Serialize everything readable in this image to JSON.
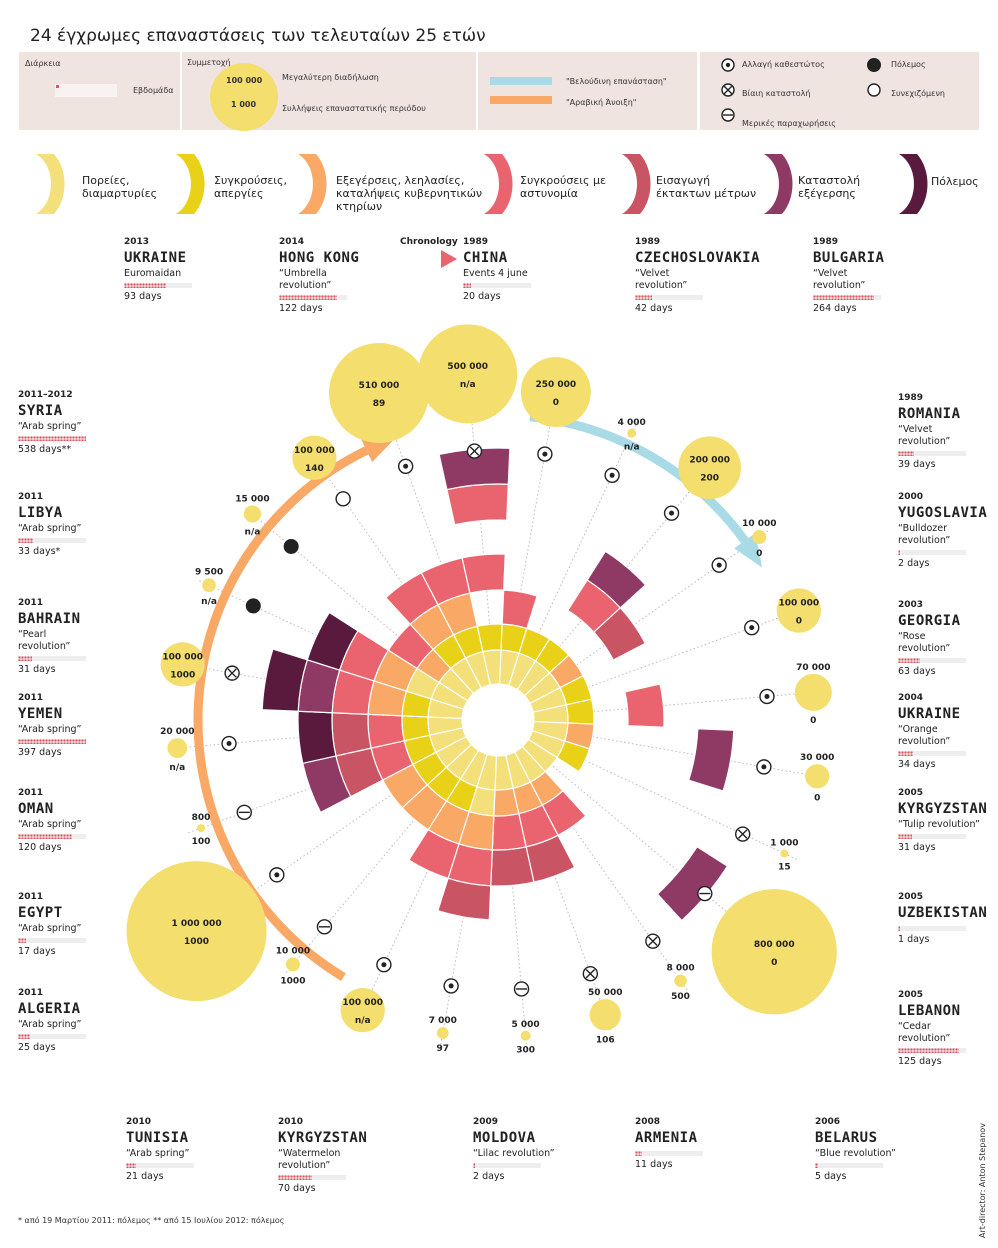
{
  "title": "24 έγχρωμες επαναστάσεις των τελευταίων 25 ετών",
  "legend": {
    "duration_label": "Διάρκεια",
    "week_label": "Εβδομάδα",
    "participation_label": "Συμμετοχή",
    "max_participation": "100 000",
    "arrests": "1 000",
    "max_spread_label": "Μεγαλύτερη διαδήλωση",
    "arrests_label": "Συλλήψεις επαναστατικής περιόδου",
    "velvet_label": "\"Βελούδινη επανάσταση\"",
    "arab_label": "\"Αραβική Άνοιξη\"",
    "velvet_color": "#a8dbe6",
    "arab_color": "#f9a865",
    "regime_change": "Αλλαγή καθεστώτος",
    "violent_suppression": "Βίαιη καταστολή",
    "partial_concessions": "Μερικές παραχωρήσεις",
    "war": "Πόλεμος",
    "ongoing": "Συνεχιζόμενη"
  },
  "categories": [
    {
      "label": "Πορείες, διαμαρτυρίες",
      "color": "#f4e07a",
      "icon": "yellow-wedge-icon"
    },
    {
      "label": "Συγκρούσεις, απεργίες",
      "color": "#e8d117",
      "icon": "gold-wedge-icon"
    },
    {
      "label": "Εξεγέρσεις, λεηλασίες, καταλήψεις κυβερνητικών κτηρίων",
      "color": "#f9a865",
      "icon": "orange-wedge-icon"
    },
    {
      "label": "Συγκρούσεις με αστυνομία",
      "color": "#ea6470",
      "icon": "pink-wedge-icon"
    },
    {
      "label": "Εισαγωγή έκτακτων μέτρων",
      "color": "#c95463",
      "icon": "rose-wedge-icon"
    },
    {
      "label": "Καταστολή εξέγερσης",
      "color": "#8e3a64",
      "icon": "plum-wedge-icon"
    },
    {
      "label": "Πόλεμος",
      "color": "#5a1a3e",
      "icon": "wine-wedge-icon"
    }
  ],
  "chronology_label": "Chronology",
  "revolutions": [
    {
      "year": "1989",
      "country": "CHINA",
      "name": "Events 4 june",
      "days": "20 days",
      "participants": "500 000",
      "arrests": "n/a",
      "outcome": "violent",
      "bar": 0.12
    },
    {
      "year": "1989",
      "country": "CZECHOSLOVAKIA",
      "name": "“Velvet revolution”",
      "days": "42 days",
      "participants": "250 000",
      "arrests": "0",
      "outcome": "regime",
      "bar": 0.25
    },
    {
      "year": "1989",
      "country": "BULGARIA",
      "name": "“Velvet revolution”",
      "days": "264 days",
      "participants": "4 000",
      "arrests": "n/a",
      "outcome": "regime",
      "bar": 0.9
    },
    {
      "year": "1989",
      "country": "ROMANIA",
      "name": "“Velvet revolution”",
      "days": "39 days",
      "participants": "200 000",
      "arrests": "200",
      "outcome": "regime",
      "bar": 0.23
    },
    {
      "year": "2000",
      "country": "YUGOSLAVIA",
      "name": "“Bulldozer revolution”",
      "days": "2 days",
      "participants": "10 000",
      "arrests": "0",
      "outcome": "regime",
      "bar": 0.03
    },
    {
      "year": "2003",
      "country": "GEORGIA",
      "name": "“Rose revolution”",
      "days": "63 days",
      "participants": "100 000",
      "arrests": "0",
      "outcome": "regime",
      "bar": 0.33
    },
    {
      "year": "2004",
      "country": "UKRAINE",
      "name": "“Orange revolution”",
      "days": "34 days",
      "participants": "70 000",
      "arrests": "0",
      "outcome": "regime",
      "bar": 0.22
    },
    {
      "year": "2005",
      "country": "KYRGYZSTAN",
      "name": "“Tulip revolution”",
      "days": "31 days",
      "participants": "30 000",
      "arrests": "0",
      "outcome": "regime",
      "bar": 0.2
    },
    {
      "year": "2005",
      "country": "UZBEKISTAN",
      "name": "",
      "days": "1 days",
      "participants": "1 000",
      "arrests": "15",
      "outcome": "violent",
      "bar": 0.03
    },
    {
      "year": "2005",
      "country": "LEBANON",
      "name": "“Cedar revolution”",
      "days": "125 days",
      "participants": "800 000",
      "arrests": "0",
      "outcome": "partial",
      "bar": 0.9
    },
    {
      "year": "2006",
      "country": "BELARUS",
      "name": "“Blue revolution”",
      "days": "5 days",
      "participants": "8 000",
      "arrests": "500",
      "outcome": "violent",
      "bar": 0.05
    },
    {
      "year": "2008",
      "country": "ARMENIA",
      "name": "",
      "days": "11 days",
      "participants": "50 000",
      "arrests": "106",
      "outcome": "violent",
      "bar": 0.1
    },
    {
      "year": "2009",
      "country": "MOLDOVA",
      "name": "“Lilac revolution”",
      "days": "2 days",
      "participants": "5 000",
      "arrests": "300",
      "outcome": "partial",
      "bar": 0.03
    },
    {
      "year": "2010",
      "country": "KYRGYZSTAN",
      "name": "“Watermelon revolution”",
      "days": "70 days",
      "participants": "7 000",
      "arrests": "97",
      "outcome": "regime",
      "bar": 0.5
    },
    {
      "year": "2010",
      "country": "TUNISIA",
      "name": "“Arab spring”",
      "days": "21 days",
      "participants": "100 000",
      "arrests": "n/a",
      "outcome": "regime",
      "bar": 0.15
    },
    {
      "year": "2011",
      "country": "ALGERIA",
      "name": "“Arab spring”",
      "days": "25 days",
      "participants": "10 000",
      "arrests": "1000",
      "outcome": "partial",
      "bar": 0.18
    },
    {
      "year": "2011",
      "country": "EGYPT",
      "name": "“Arab spring”",
      "days": "17 days",
      "participants": "1 000 000",
      "arrests": "1000",
      "outcome": "regime",
      "bar": 0.12
    },
    {
      "year": "2011",
      "country": "OMAN",
      "name": "“Arab spring”",
      "days": "120 days",
      "participants": "800",
      "arrests": "100",
      "outcome": "partial",
      "bar": 0.8
    },
    {
      "year": "2011",
      "country": "YEMEN",
      "name": "“Arab spring”",
      "days": "397 days",
      "participants": "20 000",
      "arrests": "n/a",
      "outcome": "regime",
      "bar": 1.0
    },
    {
      "year": "2011",
      "country": "BAHRAIN",
      "name": "“Pearl revolution”",
      "days": "31 days",
      "participants": "100 000",
      "arrests": "1000",
      "outcome": "violent",
      "bar": 0.2
    },
    {
      "year": "2011",
      "country": "LIBYA",
      "name": "“Arab spring”",
      "days": "33 days*",
      "participants": "9 500",
      "arrests": "n/a",
      "outcome": "war",
      "bar": 0.22
    },
    {
      "year": "2011–2012",
      "country": "SYRIA",
      "name": "“Arab spring”",
      "days": "538 days**",
      "participants": "15 000",
      "arrests": "n/a",
      "outcome": "war",
      "bar": 1.0
    },
    {
      "year": "2014",
      "country": "HONG KONG",
      "name": "“Umbrella revolution”",
      "days": "122 days",
      "participants": "100 000",
      "arrests": "140",
      "outcome": "ongoing",
      "bar": 0.85
    },
    {
      "year": "2013",
      "country": "UKRAINE",
      "name": "Euromaidan",
      "days": "93 days",
      "participants": "510 000",
      "arrests": "89",
      "outcome": "regime",
      "bar": 0.62
    }
  ],
  "footnote": "* από 19 Μαρτίου 2011: πόλεμος  ** από 15 Ιουλίου 2012: πόλεμος",
  "credit": "Art-director: Anton Stepanov"
}
